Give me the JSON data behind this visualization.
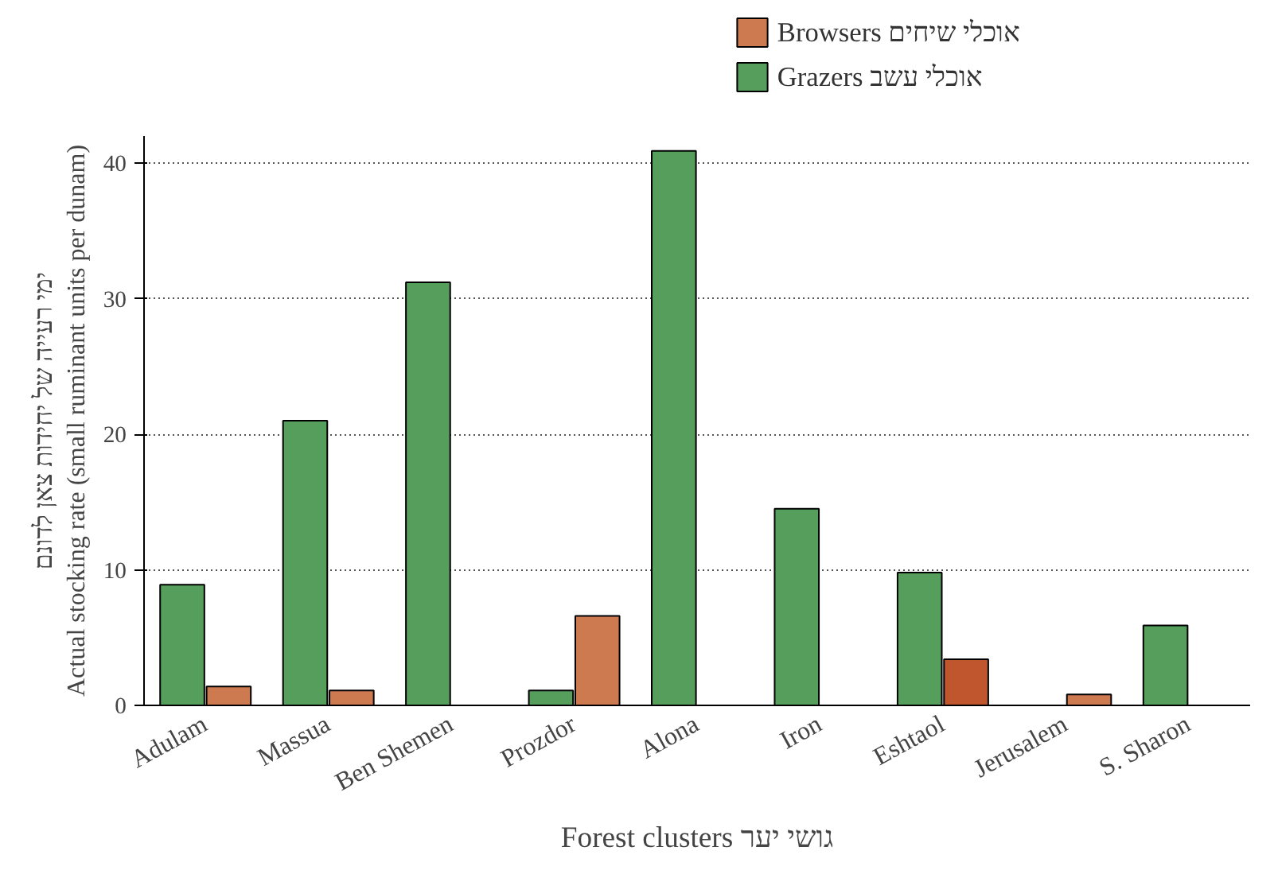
{
  "chart_data": {
    "type": "bar",
    "xlabel": "Forest clusters גושי יער",
    "ylabel": "ימי רעייה של יחידות צאן לדונם\nActual stocking rate (small ruminant units per dunam)",
    "categories": [
      "Adulam",
      "Massua",
      "Ben Shemen",
      "Prozdor",
      "Alona",
      "Iron",
      "Eshtaol",
      "Jerusalem",
      "S. Sharon"
    ],
    "series": [
      {
        "name": "Grazers אוכלי עשב",
        "color": "#559e5c",
        "values": [
          8.9,
          21.0,
          31.2,
          1.1,
          40.9,
          14.5,
          9.8,
          null,
          5.9
        ]
      },
      {
        "name": "Browsers אוכלי שיחים",
        "color": "#cd7a50",
        "colors": [
          "#cd7a50",
          "#cd7a50",
          "#cd7a50",
          "#cd7a50",
          "#cd7a50",
          "#cd7a50",
          "#c0562e",
          "#cd7a50",
          "#cd7a50"
        ],
        "values": [
          1.4,
          1.1,
          null,
          6.6,
          null,
          null,
          3.4,
          0.8,
          null
        ]
      }
    ],
    "ylim": [
      0,
      42
    ],
    "yticks": [
      0,
      10,
      20,
      30,
      40
    ],
    "grid": "y",
    "legend": "top"
  }
}
